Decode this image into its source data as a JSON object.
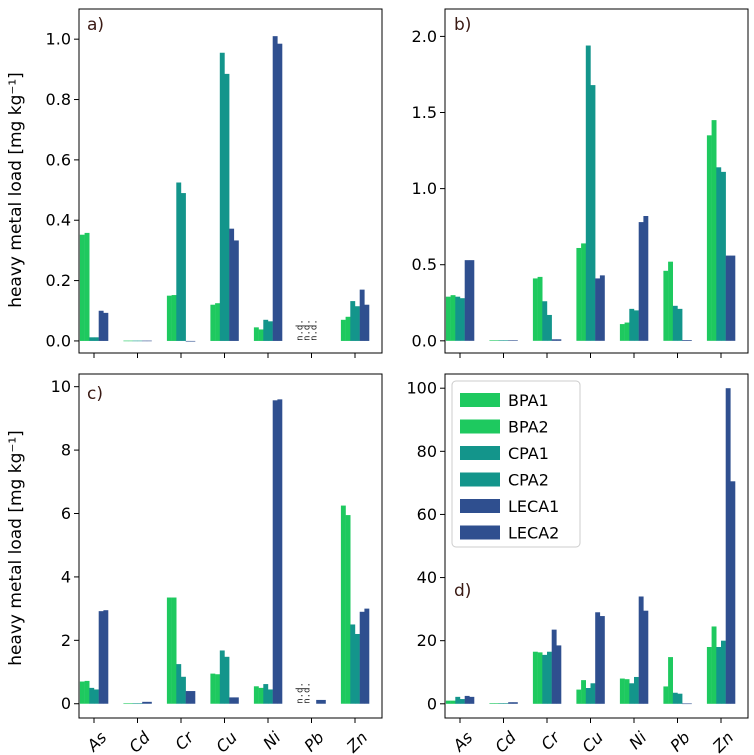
{
  "figure": {
    "ylabel": "heavy metal load [mg kg⁻¹]",
    "nd_label": "n.d.",
    "colors": {
      "BPA1": "#1ec95f",
      "BPA2": "#1ec95f",
      "CPA1": "#13958b",
      "CPA2": "#13958b",
      "LECA1": "#2f4f8f",
      "LECA2": "#2f4f8f"
    },
    "legend": [
      "BPA1",
      "BPA2",
      "CPA1",
      "CPA2",
      "LECA1",
      "LECA2"
    ]
  },
  "chart_data": [
    {
      "type": "bar",
      "panel": "a)",
      "categories": [
        "As",
        "Cd",
        "Cr",
        "Cu",
        "Ni",
        "Pb",
        "Zn"
      ],
      "ylim": [
        -0.04,
        1.1
      ],
      "yticks": [
        "0.0",
        "0.2",
        "0.4",
        "0.6",
        "0.8",
        "1.0"
      ],
      "ytick_values": [
        0,
        0.2,
        0.4,
        0.6,
        0.8,
        1.0
      ],
      "nd_categories": [
        "Pb"
      ],
      "series": [
        {
          "name": "BPA1",
          "values": [
            0.352,
            0.001,
            0.15,
            0.12,
            0.045,
            null,
            0.07
          ]
        },
        {
          "name": "BPA2",
          "values": [
            0.358,
            0.001,
            0.152,
            0.125,
            0.038,
            null,
            0.08
          ]
        },
        {
          "name": "CPA1",
          "values": [
            0.012,
            0.001,
            0.525,
            0.955,
            0.07,
            null,
            0.132
          ]
        },
        {
          "name": "CPA2",
          "values": [
            0.012,
            0.001,
            0.49,
            0.885,
            0.065,
            null,
            0.115
          ]
        },
        {
          "name": "LECA1",
          "values": [
            0.1,
            0.001,
            0.0,
            0.372,
            1.01,
            null,
            0.17
          ]
        },
        {
          "name": "LECA2",
          "values": [
            0.093,
            0.001,
            0.0,
            0.333,
            0.985,
            null,
            0.12
          ]
        }
      ]
    },
    {
      "type": "bar",
      "panel": "b)",
      "categories": [
        "As",
        "Cd",
        "Cr",
        "Cu",
        "Ni",
        "Pb",
        "Zn"
      ],
      "ylim": [
        -0.08,
        2.18
      ],
      "yticks": [
        "0.0",
        "0.5",
        "1.0",
        "1.5",
        "2.0"
      ],
      "ytick_values": [
        0,
        0.5,
        1.0,
        1.5,
        2.0
      ],
      "nd_categories": [],
      "series": [
        {
          "name": "BPA1",
          "values": [
            0.29,
            0.003,
            0.41,
            0.61,
            0.11,
            0.46,
            1.35
          ]
        },
        {
          "name": "BPA2",
          "values": [
            0.3,
            0.003,
            0.42,
            0.64,
            0.12,
            0.52,
            1.45
          ]
        },
        {
          "name": "CPA1",
          "values": [
            0.29,
            0.003,
            0.26,
            1.94,
            0.21,
            0.23,
            1.14
          ]
        },
        {
          "name": "CPA2",
          "values": [
            0.28,
            0.003,
            0.17,
            1.68,
            0.2,
            0.21,
            1.11
          ]
        },
        {
          "name": "LECA1",
          "values": [
            0.53,
            0.003,
            0.01,
            0.41,
            0.78,
            0.005,
            0.56
          ]
        },
        {
          "name": "LECA2",
          "values": [
            0.53,
            0.003,
            0.01,
            0.43,
            0.82,
            0.005,
            0.56
          ]
        }
      ]
    },
    {
      "type": "bar",
      "panel": "c)",
      "categories": [
        "As",
        "Cd",
        "Cr",
        "Cu",
        "Ni",
        "Pb",
        "Zn"
      ],
      "ylim": [
        -0.45,
        10.4
      ],
      "yticks": [
        "0",
        "2",
        "4",
        "6",
        "8",
        "10"
      ],
      "ytick_values": [
        0,
        2,
        4,
        6,
        8,
        10
      ],
      "nd_categories": [
        "Pb"
      ],
      "series": [
        {
          "name": "BPA1",
          "values": [
            0.7,
            0.01,
            3.35,
            0.95,
            0.55,
            null,
            6.25
          ]
        },
        {
          "name": "BPA2",
          "values": [
            0.72,
            0.01,
            3.35,
            0.93,
            0.5,
            null,
            5.95
          ]
        },
        {
          "name": "CPA1",
          "values": [
            0.5,
            0.01,
            1.25,
            1.68,
            0.62,
            null,
            2.5
          ]
        },
        {
          "name": "CPA2",
          "values": [
            0.45,
            0.01,
            0.85,
            1.48,
            0.45,
            null,
            2.2
          ]
        },
        {
          "name": "LECA1",
          "values": [
            2.92,
            0.06,
            0.4,
            0.2,
            9.57,
            0.12,
            2.9
          ]
        },
        {
          "name": "LECA2",
          "values": [
            2.95,
            0.06,
            0.4,
            0.2,
            9.6,
            0.12,
            3.0
          ]
        }
      ]
    },
    {
      "type": "bar",
      "panel": "d)",
      "categories": [
        "As",
        "Cd",
        "Cr",
        "Cu",
        "Ni",
        "Pb",
        "Zn"
      ],
      "ylim": [
        -4.5,
        104.5
      ],
      "yticks": [
        "0",
        "20",
        "40",
        "60",
        "80",
        "100"
      ],
      "ytick_values": [
        0,
        20,
        40,
        60,
        80,
        100
      ],
      "nd_categories": [],
      "legend_position": "upper-left",
      "series": [
        {
          "name": "BPA1",
          "values": [
            1.0,
            0.2,
            16.5,
            4.5,
            8.0,
            5.5,
            18.0
          ]
        },
        {
          "name": "BPA2",
          "values": [
            1.0,
            0.2,
            16.3,
            7.5,
            7.8,
            14.8,
            24.5
          ]
        },
        {
          "name": "CPA1",
          "values": [
            2.2,
            0.2,
            15.5,
            5.0,
            6.5,
            3.5,
            18.0
          ]
        },
        {
          "name": "CPA2",
          "values": [
            1.5,
            0.2,
            16.5,
            6.5,
            8.5,
            3.2,
            20.0
          ]
        },
        {
          "name": "LECA1",
          "values": [
            2.5,
            0.5,
            23.5,
            29.0,
            34.0,
            0.1,
            100.0
          ]
        },
        {
          "name": "LECA2",
          "values": [
            2.2,
            0.5,
            18.5,
            27.8,
            29.5,
            0.1,
            70.5
          ]
        }
      ]
    }
  ]
}
